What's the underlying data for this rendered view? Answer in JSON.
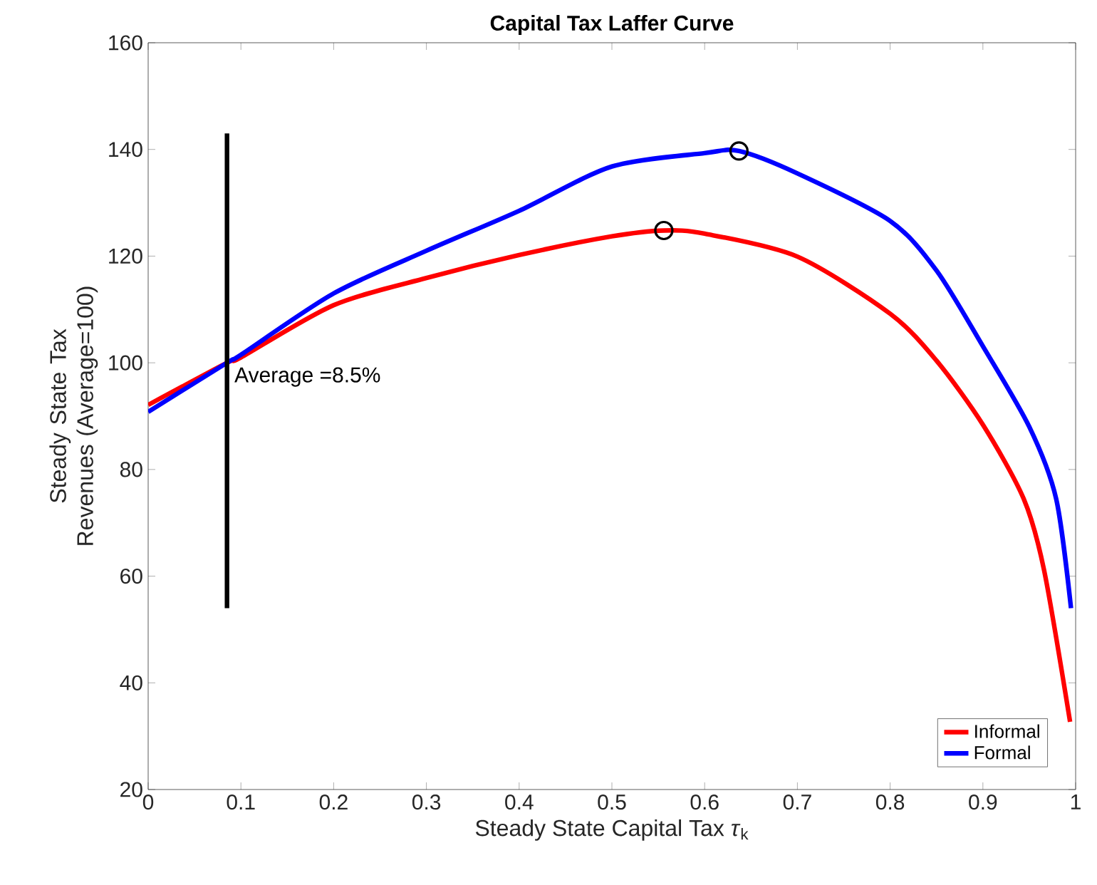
{
  "chart_data": {
    "type": "line",
    "title": "Capital Tax Laffer Curve",
    "xlabel": "Steady State Capital Tax *τ*$_{k}$",
    "ylabel": "Steady State Tax Revenues (Average=100)",
    "xlim": [
      0,
      1
    ],
    "ylim": [
      20,
      160
    ],
    "xticks": [
      0,
      0.1,
      0.2,
      0.3,
      0.4,
      0.5,
      0.6,
      0.7,
      0.8,
      0.9,
      1
    ],
    "yticks": [
      20,
      40,
      60,
      80,
      100,
      120,
      140,
      160
    ],
    "grid": false,
    "legend": "bottom right",
    "marker": "none",
    "line_style": "solid",
    "series": [
      {
        "name": "Informal",
        "color": "#ff0000",
        "x": [
          0,
          0.085,
          0.1,
          0.2,
          0.3,
          0.4,
          0.5,
          0.556,
          0.6,
          0.7,
          0.8,
          0.85,
          0.9,
          0.944,
          0.966,
          0.994
        ],
        "values": [
          92.1,
          100,
          101,
          110.8,
          115.9,
          120.2,
          123.7,
          124.8,
          124.2,
          119.9,
          109.2,
          100.4,
          88.4,
          74.5,
          61.1,
          32.7
        ]
      },
      {
        "name": "Formal",
        "color": "#0000ff",
        "x": [
          0,
          0.085,
          0.1,
          0.2,
          0.3,
          0.4,
          0.5,
          0.6,
          0.637,
          0.7,
          0.8,
          0.85,
          0.9,
          0.95,
          0.979,
          0.995
        ],
        "values": [
          90.8,
          100,
          101.5,
          113,
          121,
          128.5,
          136.8,
          139.3,
          139.7,
          135.5,
          126.6,
          117.3,
          103.1,
          88,
          74.5,
          54
        ]
      },
      {
        "type": "line",
        "color": "#000000",
        "x": [
          0.085,
          0.085
        ],
        "values": [
          54,
          143
        ]
      },
      {
        "type": "scatter",
        "color": "#000000",
        "marker": "circle",
        "x": [
          0.556,
          0.637
        ],
        "values": [
          124.8,
          139.7
        ]
      }
    ],
    "annotations": [
      {
        "text": "Average =8.5%",
        "x": 0.085,
        "y": 100
      }
    ]
  }
}
